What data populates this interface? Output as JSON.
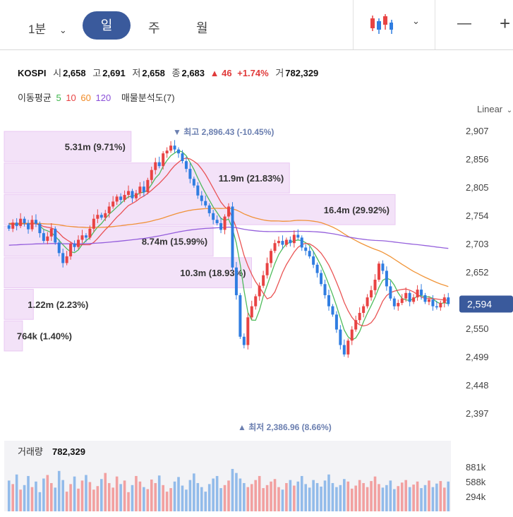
{
  "toolbar": {
    "interval": "1분",
    "tabs": [
      "일",
      "주",
      "월"
    ],
    "active_tab": "일",
    "minus": "—",
    "plus": "+"
  },
  "info": {
    "symbol": "KOSPI",
    "open_label": "시",
    "open": "2,658",
    "high_label": "고",
    "high": "2,691",
    "low_label": "저",
    "low": "2,658",
    "close_label": "종",
    "close": "2,683",
    "change": "▲ 46",
    "change_pct": "+1.74%",
    "volume_label": "거",
    "volume": "782,329"
  },
  "indicators": {
    "ma_label": "이동평균",
    "ma_periods": [
      "5",
      "10",
      "60",
      "120"
    ],
    "ma_colors": [
      "#3cb54a",
      "#e84343",
      "#f08a24",
      "#8a4fd8"
    ],
    "volume_profile_label": "매물분석도(7)"
  },
  "scale_label": "Linear",
  "colors": {
    "up": "#e84343",
    "down": "#2f7de1",
    "profile": "#f3e2f8",
    "badge": "#3a5a9c"
  },
  "chart_data": {
    "type": "candlestick",
    "symbol": "KOSPI",
    "y_ticks": [
      2907,
      2856,
      2805,
      2754,
      2703,
      2652,
      2550,
      2499,
      2448,
      2397
    ],
    "ylim": [
      2380,
      2920
    ],
    "current_price": "2,594",
    "max_annotation": "▼ 최고 2,896.43 (-10.45%)",
    "min_annotation": "▲ 최저 2,386.96 (8.66%)",
    "volume_profile": [
      {
        "range": [
          2850,
          2907
        ],
        "label": "5.31m (9.71%)",
        "share": 9.71
      },
      {
        "range": [
          2793,
          2850
        ],
        "label": "11.9m (21.83%)",
        "share": 21.83
      },
      {
        "range": [
          2736,
          2793
        ],
        "label": "16.4m (29.92%)",
        "share": 29.92
      },
      {
        "range": [
          2679,
          2736
        ],
        "label": "8.74m (15.99%)",
        "share": 15.99
      },
      {
        "range": [
          2622,
          2679
        ],
        "label": "10.3m (18.93%)",
        "share": 18.93
      },
      {
        "range": [
          2565,
          2622
        ],
        "label": "1.22m (2.23%)",
        "share": 2.23
      },
      {
        "range": [
          2508,
          2565
        ],
        "label": "764k (1.40%)",
        "share": 1.4
      }
    ],
    "closes": [
      2730,
      2741,
      2735,
      2748,
      2740,
      2729,
      2746,
      2739,
      2722,
      2708,
      2716,
      2730,
      2705,
      2686,
      2668,
      2680,
      2703,
      2697,
      2710,
      2718,
      2714,
      2730,
      2748,
      2755,
      2750,
      2758,
      2770,
      2779,
      2788,
      2782,
      2791,
      2798,
      2785,
      2794,
      2806,
      2796,
      2818,
      2836,
      2850,
      2843,
      2866,
      2871,
      2880,
      2873,
      2866,
      2852,
      2838,
      2820,
      2808,
      2790,
      2780,
      2772,
      2758,
      2746,
      2740,
      2728,
      2752,
      2770,
      2660,
      2610,
      2535,
      2520,
      2570,
      2590,
      2608,
      2627,
      2646,
      2668,
      2690,
      2704,
      2708,
      2701,
      2710,
      2704,
      2719,
      2714,
      2696,
      2690,
      2680,
      2665,
      2650,
      2630,
      2610,
      2590,
      2575,
      2548,
      2520,
      2503,
      2528,
      2548,
      2565,
      2578,
      2590,
      2606,
      2619,
      2638,
      2667,
      2654,
      2626,
      2604,
      2590,
      2596,
      2604,
      2614,
      2598,
      2606,
      2620,
      2610,
      2598,
      2602,
      2590,
      2588,
      2596,
      2606,
      2594
    ],
    "ma": {
      "5": "shortest, hugs price",
      "10": "short",
      "60": "medium",
      "120": "long"
    },
    "volume_label": "거래량",
    "volume_value": "782,329",
    "volume_ticks": [
      "881k",
      "588k",
      "294k"
    ],
    "volume_ticks_values": [
      881,
      588,
      294
    ],
    "volumes": [
      610,
      540,
      730,
      430,
      520,
      700,
      480,
      590,
      380,
      650,
      720,
      560,
      470,
      800,
      620,
      390,
      540,
      690,
      450,
      610,
      720,
      580,
      430,
      500,
      640,
      760,
      560,
      470,
      690,
      540,
      610,
      380,
      520,
      700,
      590,
      480,
      440,
      630,
      560,
      710,
      520,
      390,
      460,
      590,
      680,
      510,
      430,
      620,
      750,
      560,
      480,
      390,
      540,
      650,
      700,
      460,
      520,
      610,
      840,
      760,
      650,
      560,
      480,
      540,
      620,
      700,
      460,
      520,
      590,
      640,
      480,
      430,
      560,
      620,
      510,
      590,
      700,
      540,
      470,
      620,
      560,
      490,
      610,
      730,
      560,
      480,
      520,
      640,
      590,
      450,
      510,
      620,
      560,
      480,
      600,
      690,
      540,
      470,
      520,
      610,
      440,
      500,
      570,
      620,
      480,
      530,
      590,
      460,
      520,
      610,
      480,
      550,
      600,
      470,
      590
    ]
  }
}
